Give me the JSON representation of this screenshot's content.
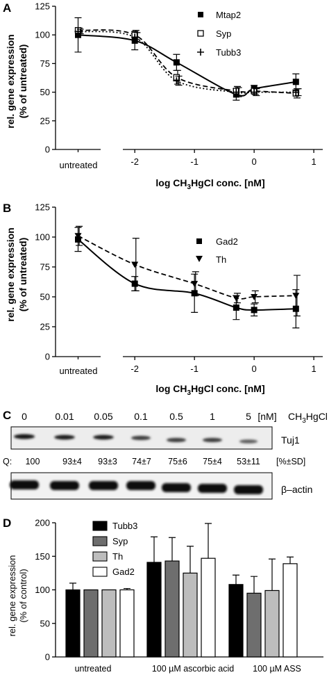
{
  "panel_labels": [
    "A",
    "B",
    "C",
    "D"
  ],
  "chart_data": [
    {
      "panel": "A",
      "type": "line",
      "ylabel_lines": [
        "rel. gene expression",
        "(% of untreated)"
      ],
      "xlabel": "log CH3HgCl conc. [nM]",
      "xlabel_main": "log CH",
      "xlabel_sub": "3",
      "xlabel_rest": "HgCl conc. [nM]",
      "yticks": [
        "0",
        "25",
        "50",
        "75",
        "100",
        "125"
      ],
      "xticks": [
        "-2",
        "-1",
        "0",
        "1"
      ],
      "untreated_label": "untreated",
      "ylim": [
        0,
        125
      ],
      "xlim": [
        -2.2,
        1.15
      ],
      "x": [
        -2,
        -1.3,
        -0.3,
        0,
        0.7
      ],
      "series": [
        {
          "name": "Mtap2",
          "marker": "square",
          "line": "solid",
          "untreated": 100,
          "untreated_err": 15,
          "values": [
            95,
            76,
            48,
            53,
            59
          ],
          "errors": [
            8,
            7,
            5,
            3,
            7
          ]
        },
        {
          "name": "Syp",
          "marker": "open-square",
          "line": "dashed",
          "untreated": 104,
          "untreated_err": 2,
          "values": [
            100,
            63,
            51,
            51,
            49
          ],
          "errors": [
            4,
            6,
            4,
            3,
            4
          ]
        },
        {
          "name": "Tubb3",
          "marker": "plus",
          "line": "dotted",
          "untreated": 103,
          "untreated_err": 2,
          "values": [
            98,
            60,
            50,
            50,
            50
          ],
          "errors": [
            4,
            4,
            4,
            3,
            3
          ]
        }
      ]
    },
    {
      "panel": "B",
      "type": "line",
      "ylabel_lines": [
        "rel. gene expression",
        "(% of untreated)"
      ],
      "xlabel": "log CH3HgCl conc. [nM]",
      "xlabel_main": "log CH",
      "xlabel_sub": "3",
      "xlabel_rest": "HgCl conc. [nM]",
      "yticks": [
        "0",
        "25",
        "50",
        "75",
        "100",
        "125"
      ],
      "xticks": [
        "-2",
        "-1",
        "0",
        "1"
      ],
      "untreated_label": "untreated",
      "ylim": [
        0,
        125
      ],
      "xlim": [
        -2.2,
        1.15
      ],
      "x": [
        -2,
        -1,
        -0.3,
        0,
        0.7
      ],
      "series": [
        {
          "name": "Gad2",
          "marker": "square",
          "line": "solid",
          "untreated": 98,
          "untreated_err": 10,
          "values": [
            61,
            53,
            41,
            39,
            40
          ],
          "errors": [
            6,
            16,
            10,
            5,
            16
          ]
        },
        {
          "name": "Th",
          "marker": "down-triangle",
          "line": "dashed",
          "untreated": 101,
          "untreated_err": 8,
          "values": [
            77,
            61,
            49,
            50,
            51
          ],
          "errors": [
            22,
            10,
            4,
            5,
            17
          ]
        }
      ]
    },
    {
      "panel": "D",
      "type": "bar",
      "ylabel_lines": [
        "rel. gene expression",
        "(% of control)"
      ],
      "categories": [
        "untreated",
        "100 µM ascorbic acid",
        "100 µM ASS"
      ],
      "yticks": [
        "0",
        "50",
        "100",
        "150",
        "200"
      ],
      "ylim": [
        0,
        200
      ],
      "series": [
        {
          "name": "Tubb3",
          "color": "#000000",
          "values": [
            100,
            141,
            108
          ],
          "errors": [
            10,
            38,
            14
          ]
        },
        {
          "name": "Syp",
          "color": "#6e6e6e",
          "values": [
            100,
            143,
            95
          ],
          "errors": [
            0,
            35,
            25
          ]
        },
        {
          "name": "Th",
          "color": "#bdbdbd",
          "values": [
            100,
            125,
            99
          ],
          "errors": [
            0,
            40,
            47
          ]
        },
        {
          "name": "Gad2",
          "color": "#ffffff",
          "values": [
            100,
            147,
            139
          ],
          "errors": [
            2,
            52,
            10
          ]
        }
      ]
    }
  ],
  "blot": {
    "concentrations": [
      "0",
      "0.01",
      "0.05",
      "0.1",
      "0.5",
      "1",
      "5"
    ],
    "unit": "[nM]",
    "compound_main": "CH",
    "compound_sub": "3",
    "compound_rest": "HgCl",
    "band1_label": "Tuj1",
    "q_prefix": "Q:",
    "quant": [
      "100",
      "93±4",
      "93±3",
      "74±7",
      "75±6",
      "75±4",
      "53±11"
    ],
    "quant_unit": "[%±SD]",
    "band2_label": "β–actin",
    "tuj1_intensity": [
      1.0,
      0.93,
      0.93,
      0.74,
      0.75,
      0.75,
      0.53
    ],
    "tuj1_vertical_offset": [
      0,
      1,
      1,
      2,
      5,
      5,
      7
    ]
  }
}
